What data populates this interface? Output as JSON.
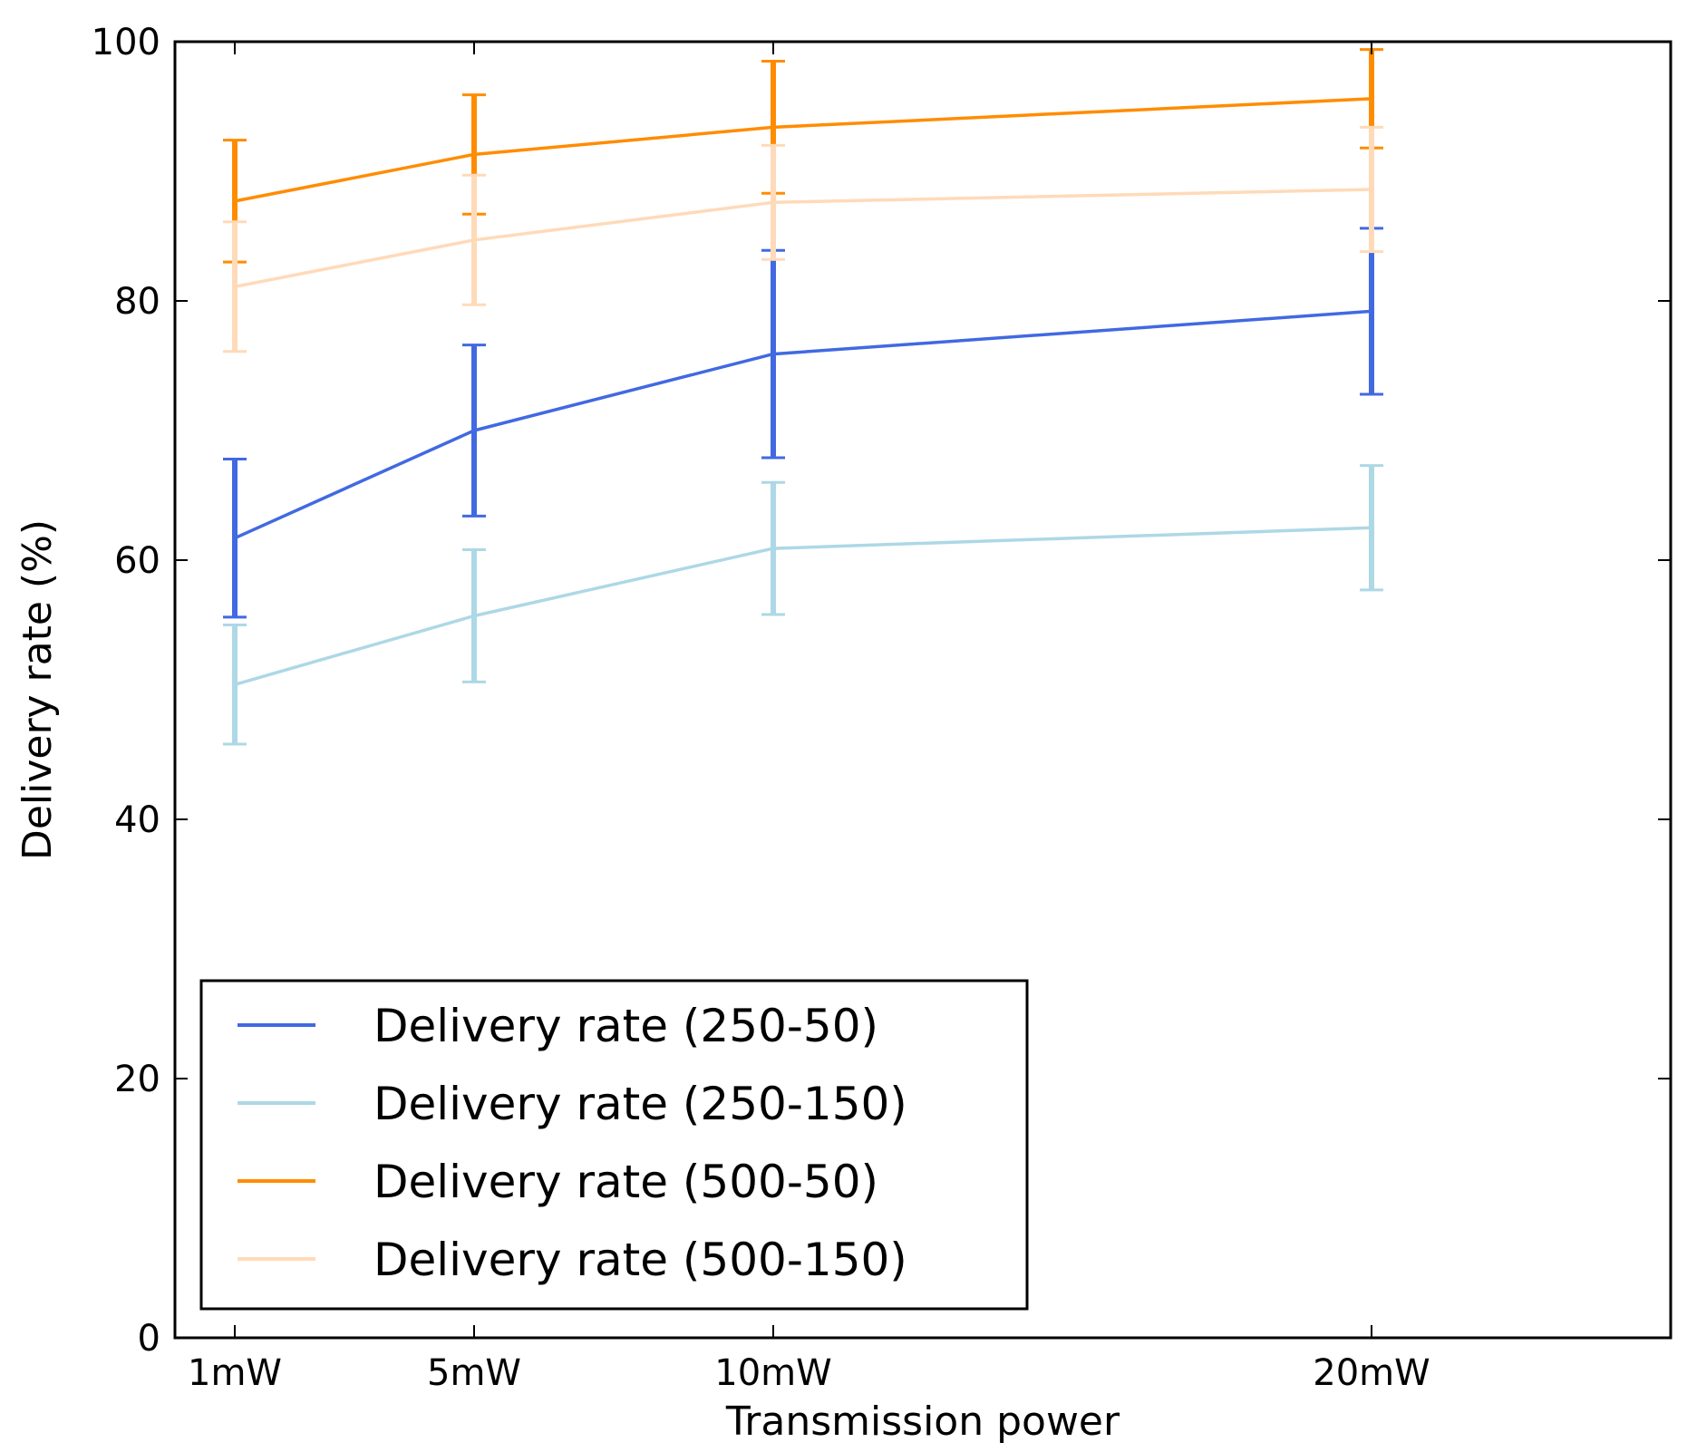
{
  "chart_data": {
    "type": "line",
    "title": "",
    "xlabel": "Transmission power",
    "ylabel": "Delivery rate (%)",
    "x": [
      1,
      5,
      10,
      20
    ],
    "x_tick_labels": [
      "1mW",
      "5mW",
      "10mW",
      "20mW"
    ],
    "xlim": [
      0,
      25
    ],
    "ylim": [
      0,
      100
    ],
    "y_ticks": [
      0,
      20,
      40,
      60,
      80,
      100
    ],
    "grid": false,
    "legend_position": "lower-left",
    "series": [
      {
        "name": "Delivery rate (250-50)",
        "color": "#4169e1",
        "values": [
          61.7,
          70.0,
          75.9,
          79.2
        ],
        "error": [
          6.1,
          6.6,
          8.0,
          6.4
        ]
      },
      {
        "name": "Delivery rate (250-150)",
        "color": "#add8e6",
        "values": [
          50.4,
          55.7,
          60.9,
          62.5
        ],
        "error": [
          4.6,
          5.1,
          5.1,
          4.8
        ]
      },
      {
        "name": "Delivery rate (500-50)",
        "color": "#ff8c00",
        "values": [
          87.7,
          91.3,
          93.4,
          95.6
        ],
        "error": [
          4.7,
          4.6,
          5.1,
          3.8
        ]
      },
      {
        "name": "Delivery rate (500-150)",
        "color": "#ffdab9",
        "values": [
          81.1,
          84.7,
          87.6,
          88.6
        ],
        "error": [
          5.0,
          5.0,
          4.4,
          4.8
        ]
      }
    ]
  }
}
